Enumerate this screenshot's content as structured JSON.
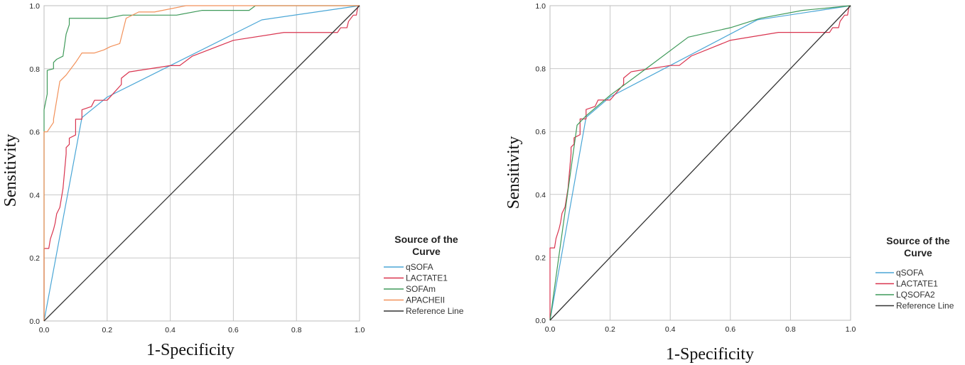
{
  "chart_data": [
    {
      "type": "line",
      "xlabel": "1-Specificity",
      "ylabel": "Sensitivity",
      "xlim": [
        0,
        1
      ],
      "ylim": [
        0,
        1
      ],
      "xticks": [
        "0.0",
        "0.2",
        "0.4",
        "0.6",
        "0.8",
        "1.0"
      ],
      "yticks": [
        "0.0",
        "0.2",
        "0.4",
        "0.6",
        "0.8",
        "1.0"
      ],
      "grid": true,
      "legend_title": "Source of the Curve",
      "legend_position": "right",
      "series": [
        {
          "name": "qSOFA",
          "color": "#4aa6d6",
          "points": [
            [
              0,
              0
            ],
            [
              0.12,
              0.645
            ],
            [
              0.2,
              0.71
            ],
            [
              0.69,
              0.955
            ],
            [
              1,
              1
            ]
          ]
        },
        {
          "name": "LACTATE1",
          "color": "#d9344f",
          "points": [
            [
              0,
              0
            ],
            [
              0,
              0.23
            ],
            [
              0.015,
              0.23
            ],
            [
              0.02,
              0.26
            ],
            [
              0.03,
              0.29
            ],
            [
              0.035,
              0.31
            ],
            [
              0.04,
              0.34
            ],
            [
              0.05,
              0.36
            ],
            [
              0.055,
              0.39
            ],
            [
              0.06,
              0.42
            ],
            [
              0.07,
              0.53
            ],
            [
              0.07,
              0.55
            ],
            [
              0.08,
              0.56
            ],
            [
              0.08,
              0.58
            ],
            [
              0.1,
              0.59
            ],
            [
              0.1,
              0.64
            ],
            [
              0.12,
              0.64
            ],
            [
              0.12,
              0.67
            ],
            [
              0.15,
              0.68
            ],
            [
              0.16,
              0.7
            ],
            [
              0.2,
              0.7
            ],
            [
              0.245,
              0.75
            ],
            [
              0.245,
              0.77
            ],
            [
              0.27,
              0.79
            ],
            [
              0.4,
              0.81
            ],
            [
              0.43,
              0.81
            ],
            [
              0.47,
              0.84
            ],
            [
              0.6,
              0.89
            ],
            [
              0.76,
              0.915
            ],
            [
              0.93,
              0.915
            ],
            [
              0.94,
              0.93
            ],
            [
              0.96,
              0.93
            ],
            [
              0.965,
              0.95
            ],
            [
              0.98,
              0.97
            ],
            [
              0.99,
              0.97
            ],
            [
              0.995,
              1
            ],
            [
              1,
              1
            ]
          ]
        },
        {
          "name": "SOFAm",
          "color": "#3f9a5a",
          "points": [
            [
              0,
              0
            ],
            [
              0,
              0.67
            ],
            [
              0.01,
              0.72
            ],
            [
              0.01,
              0.795
            ],
            [
              0.03,
              0.8
            ],
            [
              0.03,
              0.82
            ],
            [
              0.04,
              0.83
            ],
            [
              0.06,
              0.84
            ],
            [
              0.07,
              0.91
            ],
            [
              0.08,
              0.94
            ],
            [
              0.08,
              0.96
            ],
            [
              0.2,
              0.96
            ],
            [
              0.25,
              0.97
            ],
            [
              0.42,
              0.97
            ],
            [
              0.5,
              0.985
            ],
            [
              0.65,
              0.985
            ],
            [
              0.67,
              1
            ],
            [
              1,
              1
            ]
          ]
        },
        {
          "name": "APACHEII",
          "color": "#f2915a",
          "points": [
            [
              0,
              0
            ],
            [
              0,
              0.6
            ],
            [
              0.01,
              0.6
            ],
            [
              0.03,
              0.63
            ],
            [
              0.03,
              0.64
            ],
            [
              0.05,
              0.76
            ],
            [
              0.07,
              0.78
            ],
            [
              0.1,
              0.82
            ],
            [
              0.12,
              0.85
            ],
            [
              0.16,
              0.85
            ],
            [
              0.19,
              0.86
            ],
            [
              0.21,
              0.87
            ],
            [
              0.24,
              0.88
            ],
            [
              0.25,
              0.92
            ],
            [
              0.26,
              0.96
            ],
            [
              0.3,
              0.98
            ],
            [
              0.35,
              0.98
            ],
            [
              0.45,
              1
            ],
            [
              1,
              1
            ]
          ]
        },
        {
          "name": "Reference Line",
          "color": "#333333",
          "points": [
            [
              0,
              0
            ],
            [
              1,
              1
            ]
          ]
        }
      ]
    },
    {
      "type": "line",
      "xlabel": "1-Specificity",
      "ylabel": "Sensitivity",
      "xlim": [
        0,
        1
      ],
      "ylim": [
        0,
        1
      ],
      "xticks": [
        "0.0",
        "0.2",
        "0.4",
        "0.6",
        "0.8",
        "1.0"
      ],
      "yticks": [
        "0.0",
        "0.2",
        "0.4",
        "0.6",
        "0.8",
        "1.0"
      ],
      "grid": true,
      "legend_title": "Source of the Curve",
      "legend_position": "right",
      "series": [
        {
          "name": "qSOFA",
          "color": "#4aa6d6",
          "points": [
            [
              0,
              0
            ],
            [
              0.12,
              0.645
            ],
            [
              0.2,
              0.71
            ],
            [
              0.69,
              0.955
            ],
            [
              1,
              1
            ]
          ]
        },
        {
          "name": "LACTATE1",
          "color": "#d9344f",
          "points": [
            [
              0,
              0
            ],
            [
              0,
              0.23
            ],
            [
              0.015,
              0.23
            ],
            [
              0.02,
              0.26
            ],
            [
              0.03,
              0.29
            ],
            [
              0.035,
              0.31
            ],
            [
              0.04,
              0.34
            ],
            [
              0.05,
              0.36
            ],
            [
              0.055,
              0.39
            ],
            [
              0.06,
              0.42
            ],
            [
              0.07,
              0.53
            ],
            [
              0.07,
              0.55
            ],
            [
              0.08,
              0.56
            ],
            [
              0.08,
              0.58
            ],
            [
              0.1,
              0.59
            ],
            [
              0.1,
              0.64
            ],
            [
              0.12,
              0.64
            ],
            [
              0.12,
              0.67
            ],
            [
              0.15,
              0.68
            ],
            [
              0.16,
              0.7
            ],
            [
              0.2,
              0.7
            ],
            [
              0.245,
              0.75
            ],
            [
              0.245,
              0.77
            ],
            [
              0.27,
              0.79
            ],
            [
              0.4,
              0.81
            ],
            [
              0.43,
              0.81
            ],
            [
              0.47,
              0.84
            ],
            [
              0.6,
              0.89
            ],
            [
              0.76,
              0.915
            ],
            [
              0.93,
              0.915
            ],
            [
              0.94,
              0.93
            ],
            [
              0.96,
              0.93
            ],
            [
              0.965,
              0.95
            ],
            [
              0.98,
              0.97
            ],
            [
              0.99,
              0.97
            ],
            [
              0.995,
              1
            ],
            [
              1,
              1
            ]
          ]
        },
        {
          "name": "LQSOFA2",
          "color": "#3f9a5a",
          "points": [
            [
              0,
              0
            ],
            [
              0.09,
              0.62
            ],
            [
              0.12,
              0.65
            ],
            [
              0.2,
              0.715
            ],
            [
              0.32,
              0.8
            ],
            [
              0.46,
              0.9
            ],
            [
              0.6,
              0.93
            ],
            [
              0.7,
              0.96
            ],
            [
              0.84,
              0.985
            ],
            [
              1,
              1
            ]
          ]
        },
        {
          "name": "Reference Line",
          "color": "#333333",
          "points": [
            [
              0,
              0
            ],
            [
              1,
              1
            ]
          ]
        }
      ]
    }
  ]
}
